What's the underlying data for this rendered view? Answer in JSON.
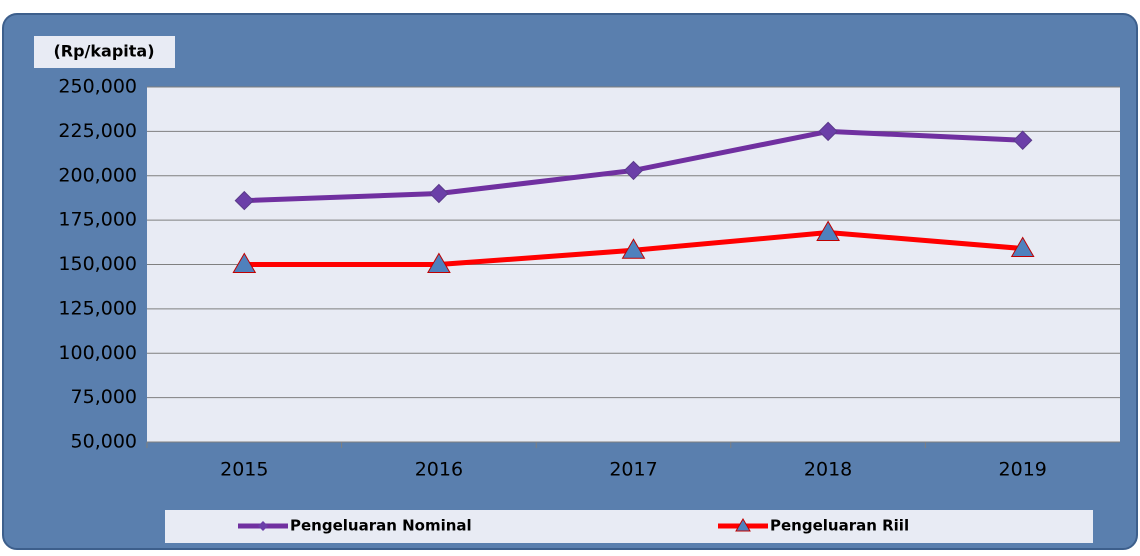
{
  "chart_data": {
    "type": "line",
    "ylabel": "(Rp/kapita)",
    "categories": [
      "2015",
      "2016",
      "2017",
      "2018",
      "2019"
    ],
    "series": [
      {
        "name": "Pengeluaran Nominal",
        "color": "#7030a0",
        "marker": "diamond",
        "marker_color": "#6b3fa8",
        "values": [
          186000,
          190000,
          203000,
          225000,
          220000
        ]
      },
      {
        "name": "Pengeluaran Riil",
        "color": "#ff0000",
        "marker": "triangle",
        "marker_color": "#4f81bd",
        "values": [
          150000,
          150000,
          158000,
          168000,
          159000
        ]
      }
    ],
    "ylim": [
      50000,
      250000
    ],
    "yticks": [
      {
        "value": 50000,
        "label": "50,000"
      },
      {
        "value": 75000,
        "label": "75,000"
      },
      {
        "value": 100000,
        "label": "100,000"
      },
      {
        "value": 125000,
        "label": "125,000"
      },
      {
        "value": 150000,
        "label": "150,000"
      },
      {
        "value": 175000,
        "label": "175,000"
      },
      {
        "value": 200000,
        "label": "200,000"
      },
      {
        "value": 225000,
        "label": "225,000"
      },
      {
        "value": 250000,
        "label": "250,000"
      }
    ],
    "grid": true,
    "legend": "bottom"
  }
}
